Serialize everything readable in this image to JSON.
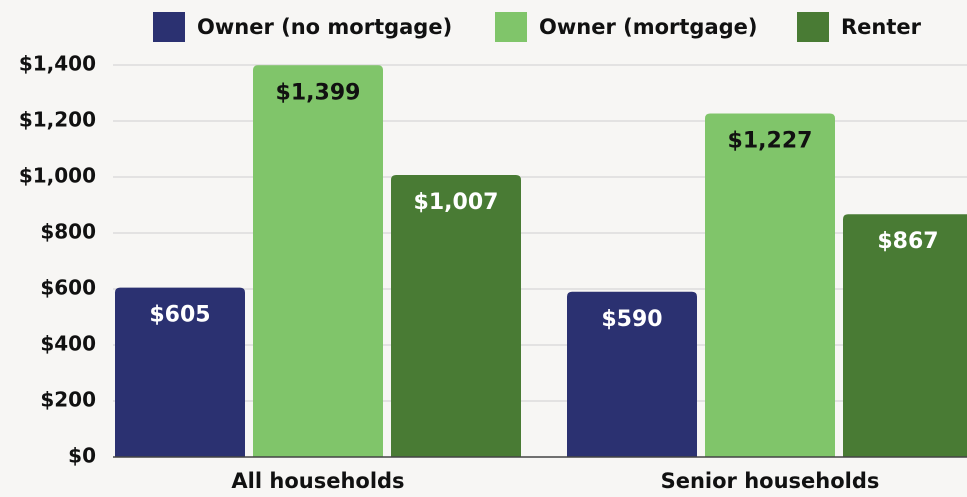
{
  "chart_data": {
    "type": "bar",
    "categories": [
      "All households",
      "Senior households"
    ],
    "series": [
      {
        "name": "Owner (no mortgage)",
        "color": "#2b3171",
        "values": [
          605,
          590
        ],
        "value_labels": [
          "$605",
          "$590"
        ]
      },
      {
        "name": "Owner (mortgage)",
        "color": "#80c56a",
        "values": [
          1399,
          1227
        ],
        "value_labels": [
          "$1,399",
          "$1,227"
        ]
      },
      {
        "name": "Renter",
        "color": "#497b34",
        "values": [
          1007,
          867
        ],
        "value_labels": [
          "$1,007",
          "$867"
        ]
      }
    ],
    "ylim": [
      0,
      1400
    ],
    "yticks": [
      {
        "value": 0,
        "label": "$0"
      },
      {
        "value": 200,
        "label": "$200"
      },
      {
        "value": 400,
        "label": "$400"
      },
      {
        "value": 600,
        "label": "$600"
      },
      {
        "value": 800,
        "label": "$800"
      },
      {
        "value": 1000,
        "label": "$1,000"
      },
      {
        "value": 1200,
        "label": "$1,200"
      },
      {
        "value": 1400,
        "label": "$1,400"
      }
    ],
    "grid": true,
    "legend": "top"
  }
}
